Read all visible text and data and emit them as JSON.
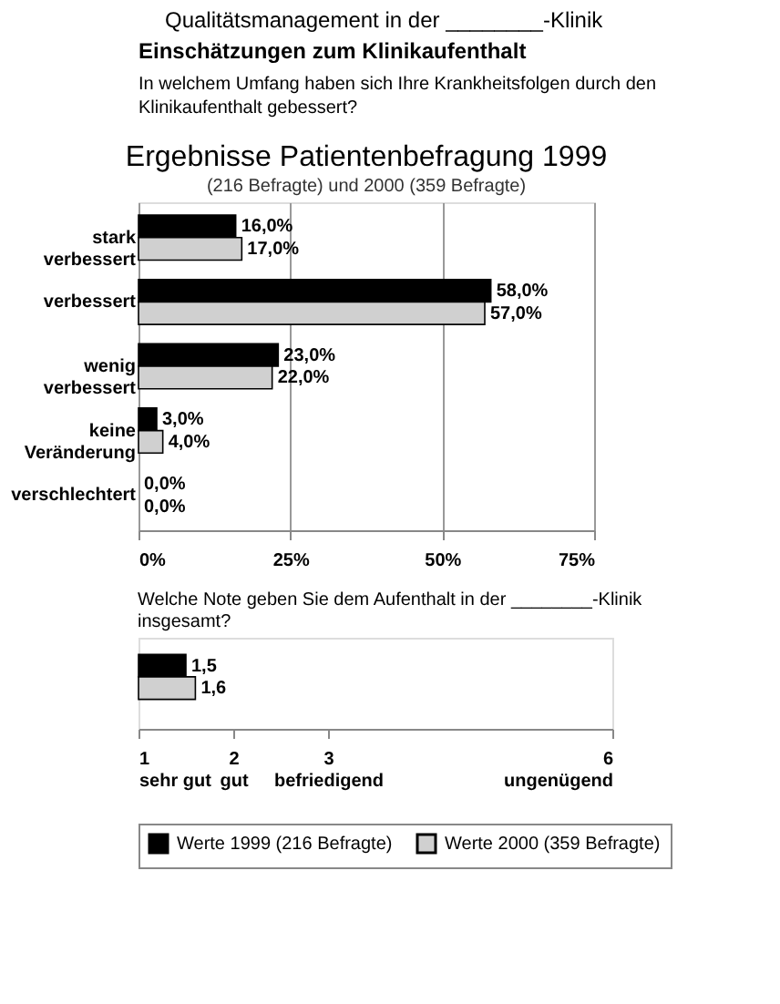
{
  "chart_data": [
    {
      "type": "bar",
      "orientation": "horizontal",
      "title": "Ergebnisse Patientenbefragung 1999",
      "subtitle": "(216 Befragte) und 2000 (359 Befragte)",
      "annotations": [
        "Qualitätsmanagement in der ________-Klinik",
        "Einschätzungen zum Klinikaufenthalt",
        "In welchem Umfang haben sich Ihre Krankheitsfolgen durch den Klinikaufenthalt gebessert?"
      ],
      "categories": [
        "stark verbessert",
        "verbessert",
        "wenig verbessert",
        "keine Veränderung",
        "verschlechtert"
      ],
      "series": [
        {
          "name": "Werte 1999 (216 Befragte)",
          "color": "#000000",
          "values": [
            16,
            58,
            23,
            3,
            0
          ],
          "value_labels": [
            "16,0%",
            "58,0%",
            "23,0%",
            "3,0%",
            "0,0%"
          ]
        },
        {
          "name": "Werte 2000 (359 Befragte)",
          "color": "#d0d0d0",
          "values": [
            17,
            57,
            22,
            4,
            0
          ],
          "value_labels": [
            "17,0%",
            "57,0%",
            "22,0%",
            "4,0%",
            "0,0%"
          ]
        }
      ],
      "xlim": [
        0,
        75
      ],
      "xticks": [
        {
          "value": 0,
          "label": "0%"
        },
        {
          "value": 25,
          "label": "25%"
        },
        {
          "value": 50,
          "label": "50%"
        },
        {
          "value": 75,
          "label": "75%"
        }
      ],
      "grid": "x",
      "legend": "bottom"
    },
    {
      "type": "bar",
      "orientation": "horizontal",
      "title": "Welche Note geben Sie dem Aufenthalt in der ________-Klinik insgesamt?",
      "categories": [
        null
      ],
      "series": [
        {
          "name": "Werte 1999 (216 Befragte)",
          "color": "#000000",
          "values": [
            1.5
          ],
          "value_labels": [
            "1,5"
          ]
        },
        {
          "name": "Werte 2000 (359 Befragte)",
          "color": "#d0d0d0",
          "values": [
            1.6
          ],
          "value_labels": [
            "1,6"
          ]
        }
      ],
      "legend": "bottom",
      "xlim": [
        1,
        6
      ],
      "xticks": [
        {
          "value": 1,
          "label": "1\nsehr gut"
        },
        {
          "value": 2,
          "label": "2\ngut"
        },
        {
          "value": 3,
          "label": "3\nbefriedigend"
        },
        {
          "value": 6,
          "label": "6\nungenügend"
        }
      ]
    }
  ]
}
